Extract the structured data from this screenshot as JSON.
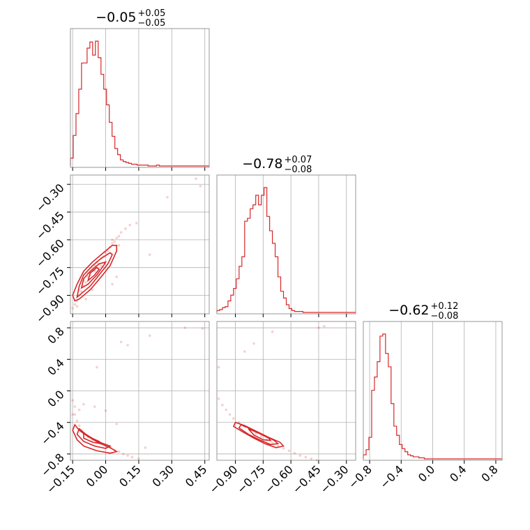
{
  "chart_data": {
    "type": "corner",
    "color": "#d62728",
    "params": [
      {
        "title": {
          "median": "−0.05",
          "plus": "+0.05",
          "minus": "−0.05"
        },
        "range": [
          -0.16,
          0.47
        ],
        "ticks": [
          -0.15,
          0.0,
          0.15,
          0.3,
          0.45
        ],
        "ticklabels": [
          "−0.15",
          "0.00",
          "0.15",
          "0.30",
          "0.45"
        ],
        "hist": {
          "edges_start": -0.16,
          "bin_width": 0.0126,
          "counts": [
            9,
            35,
            60,
            88,
            118,
            118,
            135,
            142,
            127,
            143,
            124,
            105,
            88,
            70,
            50,
            34,
            20,
            13,
            7,
            5,
            4,
            3,
            2,
            2,
            1,
            1,
            1,
            1,
            0,
            0,
            0,
            1,
            0,
            0,
            0,
            0,
            0,
            0,
            0,
            0,
            0,
            0,
            0,
            0,
            0,
            0,
            0,
            0,
            0,
            0
          ]
        }
      },
      {
        "title": {
          "median": "−0.78",
          "plus": "+0.07",
          "minus": "−0.08"
        },
        "range": [
          -1.0,
          -0.25
        ],
        "ticks": [
          -0.9,
          -0.75,
          -0.6,
          -0.45,
          -0.3
        ],
        "ticklabels": [
          "−0.90",
          "−0.75",
          "−0.60",
          "−0.45",
          "−0.30"
        ],
        "hist": {
          "edges_start": -1.0,
          "bin_width": 0.015,
          "counts": [
            2,
            3,
            5,
            6,
            12,
            18,
            25,
            35,
            48,
            58,
            95,
            98,
            108,
            112,
            122,
            112,
            122,
            130,
            100,
            85,
            72,
            58,
            37,
            22,
            15,
            8,
            4,
            2,
            1,
            1,
            1,
            0,
            0,
            0,
            0,
            0,
            0,
            0,
            0,
            0,
            0,
            0,
            0,
            0,
            0,
            0,
            0,
            0,
            0,
            0
          ]
        }
      },
      {
        "title": {
          "median": "−0.62",
          "plus": "+0.12",
          "minus": "−0.08"
        },
        "range": [
          -0.88,
          0.88
        ],
        "ticks": [
          -0.8,
          -0.4,
          0.0,
          0.4,
          0.8
        ],
        "ticklabels": [
          "−0.8",
          "−0.4",
          "0.0",
          "0.4",
          "0.8"
        ],
        "hist": {
          "edges_start": -0.88,
          "bin_width": 0.0352,
          "counts": [
            4,
            9,
            21,
            67,
            80,
            95,
            120,
            122,
            103,
            90,
            54,
            32,
            23,
            14,
            10,
            7,
            4,
            3,
            2,
            2,
            1,
            1,
            0,
            0,
            0,
            0,
            0,
            0,
            0,
            0,
            0,
            0,
            0,
            0,
            0,
            0,
            0,
            0,
            0,
            0,
            0,
            0,
            0,
            0,
            0,
            0,
            0,
            0,
            0,
            0
          ]
        }
      }
    ],
    "pairs": [
      {
        "row": 1,
        "col": 0,
        "samples": [
          [
            -0.14,
            -0.95
          ],
          [
            -0.13,
            -0.93
          ],
          [
            -0.12,
            -0.9
          ],
          [
            -0.12,
            -0.87
          ],
          [
            -0.11,
            -0.88
          ],
          [
            -0.1,
            -0.85
          ],
          [
            -0.1,
            -0.82
          ],
          [
            -0.09,
            -0.83
          ],
          [
            -0.08,
            -0.8
          ],
          [
            -0.08,
            -0.78
          ],
          [
            -0.07,
            -0.79
          ],
          [
            -0.06,
            -0.76
          ],
          [
            -0.05,
            -0.77
          ],
          [
            -0.05,
            -0.74
          ],
          [
            -0.04,
            -0.72
          ],
          [
            -0.03,
            -0.73
          ],
          [
            -0.02,
            -0.7
          ],
          [
            -0.01,
            -0.69
          ],
          [
            0.0,
            -0.67
          ],
          [
            0.01,
            -0.66
          ],
          [
            0.02,
            -0.64
          ],
          [
            0.03,
            -0.62
          ],
          [
            0.04,
            -0.61
          ],
          [
            0.05,
            -0.59
          ],
          [
            0.06,
            -0.58
          ],
          [
            0.07,
            -0.56
          ],
          [
            0.09,
            -0.54
          ],
          [
            0.11,
            -0.52
          ],
          [
            -0.15,
            -0.97
          ],
          [
            -0.13,
            -0.96
          ],
          [
            0.06,
            -0.63
          ],
          [
            0.03,
            -0.6
          ],
          [
            -0.09,
            -0.92
          ],
          [
            -0.06,
            -0.87
          ],
          [
            0.2,
            -0.68
          ],
          [
            0.28,
            -0.37
          ],
          [
            0.41,
            -0.27
          ],
          [
            0.43,
            -0.31
          ],
          [
            0.14,
            -0.51
          ],
          [
            -0.02,
            -0.74
          ],
          [
            0.03,
            -0.84
          ],
          [
            0.05,
            -0.8
          ]
        ],
        "contours": [
          [
            [
              -0.14,
              -0.93
            ],
            [
              -0.12,
              -0.92
            ],
            [
              -0.07,
              -0.87
            ],
            [
              -0.02,
              -0.8
            ],
            [
              0.02,
              -0.74
            ],
            [
              0.05,
              -0.66
            ],
            [
              0.05,
              -0.63
            ],
            [
              0.03,
              -0.63
            ],
            [
              -0.01,
              -0.67
            ],
            [
              -0.06,
              -0.72
            ],
            [
              -0.1,
              -0.77
            ],
            [
              -0.13,
              -0.84
            ],
            [
              -0.15,
              -0.9
            ]
          ],
          [
            [
              -0.13,
              -0.91
            ],
            [
              -0.11,
              -0.89
            ],
            [
              -0.07,
              -0.85
            ],
            [
              -0.03,
              -0.79
            ],
            [
              0.01,
              -0.73
            ],
            [
              0.03,
              -0.68
            ],
            [
              0.02,
              -0.67
            ],
            [
              -0.02,
              -0.7
            ],
            [
              -0.06,
              -0.74
            ],
            [
              -0.1,
              -0.79
            ],
            [
              -0.12,
              -0.85
            ]
          ],
          [
            [
              -0.11,
              -0.86
            ],
            [
              -0.08,
              -0.84
            ],
            [
              -0.04,
              -0.79
            ],
            [
              -0.01,
              -0.74
            ],
            [
              0.0,
              -0.72
            ],
            [
              -0.03,
              -0.73
            ],
            [
              -0.07,
              -0.77
            ],
            [
              -0.1,
              -0.81
            ]
          ],
          [
            [
              -0.08,
              -0.82
            ],
            [
              -0.05,
              -0.79
            ],
            [
              -0.03,
              -0.76
            ],
            [
              -0.04,
              -0.75
            ],
            [
              -0.07,
              -0.78
            ]
          ]
        ]
      },
      {
        "row": 2,
        "col": 0,
        "samples": [
          [
            -0.15,
            -0.12
          ],
          [
            -0.14,
            -0.2
          ],
          [
            -0.14,
            -0.3
          ],
          [
            -0.13,
            -0.38
          ],
          [
            -0.12,
            -0.44
          ],
          [
            -0.11,
            -0.5
          ],
          [
            -0.1,
            -0.54
          ],
          [
            -0.08,
            -0.58
          ],
          [
            -0.06,
            -0.62
          ],
          [
            -0.04,
            -0.65
          ],
          [
            -0.02,
            -0.67
          ],
          [
            0.0,
            -0.7
          ],
          [
            0.02,
            -0.72
          ],
          [
            0.04,
            -0.75
          ],
          [
            0.06,
            -0.77
          ],
          [
            0.08,
            -0.8
          ],
          [
            0.1,
            -0.82
          ],
          [
            0.12,
            -0.84
          ],
          [
            0.15,
            -0.86
          ],
          [
            -0.15,
            -0.3
          ],
          [
            -0.12,
            -0.24
          ],
          [
            -0.1,
            -0.17
          ],
          [
            -0.05,
            -0.2
          ],
          [
            0.0,
            -0.25
          ],
          [
            0.05,
            -0.42
          ],
          [
            0.07,
            0.62
          ],
          [
            0.1,
            0.58
          ],
          [
            0.2,
            0.7
          ],
          [
            -0.04,
            0.3
          ],
          [
            0.36,
            0.8
          ],
          [
            0.44,
            0.79
          ],
          [
            0.18,
            -0.72
          ]
        ],
        "contours": [
          [
            [
              -0.14,
              -0.43
            ],
            [
              -0.12,
              -0.5
            ],
            [
              -0.08,
              -0.58
            ],
            [
              -0.03,
              -0.66
            ],
            [
              0.02,
              -0.72
            ],
            [
              0.05,
              -0.77
            ],
            [
              0.02,
              -0.79
            ],
            [
              -0.04,
              -0.76
            ],
            [
              -0.1,
              -0.7
            ],
            [
              -0.13,
              -0.62
            ],
            [
              -0.15,
              -0.5
            ]
          ],
          [
            [
              -0.12,
              -0.48
            ],
            [
              -0.09,
              -0.55
            ],
            [
              -0.05,
              -0.62
            ],
            [
              -0.01,
              -0.67
            ],
            [
              0.02,
              -0.7
            ],
            [
              0.0,
              -0.73
            ],
            [
              -0.05,
              -0.7
            ],
            [
              -0.1,
              -0.64
            ],
            [
              -0.13,
              -0.55
            ]
          ],
          [
            [
              -0.1,
              -0.54
            ],
            [
              -0.07,
              -0.59
            ],
            [
              -0.03,
              -0.64
            ],
            [
              -0.02,
              -0.67
            ],
            [
              -0.06,
              -0.65
            ],
            [
              -0.1,
              -0.6
            ]
          ]
        ]
      },
      {
        "row": 2,
        "col": 1,
        "samples": [
          [
            -0.99,
            -0.1
          ],
          [
            -0.97,
            -0.18
          ],
          [
            -0.95,
            -0.24
          ],
          [
            -0.93,
            -0.3
          ],
          [
            -0.91,
            -0.35
          ],
          [
            -0.88,
            -0.4
          ],
          [
            -0.85,
            -0.45
          ],
          [
            -0.82,
            -0.5
          ],
          [
            -0.79,
            -0.54
          ],
          [
            -0.76,
            -0.58
          ],
          [
            -0.73,
            -0.62
          ],
          [
            -0.7,
            -0.66
          ],
          [
            -0.67,
            -0.7
          ],
          [
            -0.64,
            -0.73
          ],
          [
            -0.61,
            -0.76
          ],
          [
            -0.58,
            -0.79
          ],
          [
            -0.55,
            -0.82
          ],
          [
            -0.52,
            -0.84
          ],
          [
            -0.49,
            -0.86
          ],
          [
            -0.46,
            -0.88
          ],
          [
            -0.99,
            0.3
          ],
          [
            -0.85,
            0.5
          ],
          [
            -0.8,
            0.6
          ],
          [
            -0.7,
            0.75
          ],
          [
            -0.45,
            0.8
          ],
          [
            -0.42,
            0.82
          ]
        ],
        "contours": [
          [
            [
              -0.9,
              -0.4
            ],
            [
              -0.85,
              -0.44
            ],
            [
              -0.78,
              -0.52
            ],
            [
              -0.72,
              -0.59
            ],
            [
              -0.66,
              -0.65
            ],
            [
              -0.64,
              -0.7
            ],
            [
              -0.68,
              -0.72
            ],
            [
              -0.74,
              -0.67
            ],
            [
              -0.8,
              -0.6
            ],
            [
              -0.86,
              -0.52
            ],
            [
              -0.91,
              -0.45
            ]
          ],
          [
            [
              -0.87,
              -0.43
            ],
            [
              -0.81,
              -0.49
            ],
            [
              -0.75,
              -0.56
            ],
            [
              -0.69,
              -0.63
            ],
            [
              -0.67,
              -0.67
            ],
            [
              -0.71,
              -0.68
            ],
            [
              -0.77,
              -0.62
            ],
            [
              -0.83,
              -0.55
            ],
            [
              -0.88,
              -0.47
            ]
          ],
          [
            [
              -0.83,
              -0.48
            ],
            [
              -0.77,
              -0.54
            ],
            [
              -0.72,
              -0.6
            ],
            [
              -0.71,
              -0.63
            ],
            [
              -0.75,
              -0.62
            ],
            [
              -0.8,
              -0.56
            ]
          ]
        ]
      }
    ]
  }
}
